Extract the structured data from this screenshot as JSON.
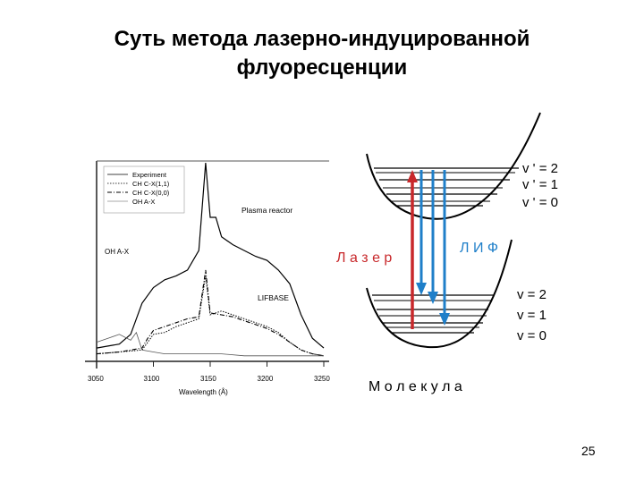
{
  "slide": {
    "title_line1": "Суть метода лазерно-индуцированной",
    "title_line2": "флуоресценции",
    "page_number": "25"
  },
  "chart_data": {
    "type": "line",
    "xlabel": "Wavelength (Å)",
    "ylabel": "",
    "xlim": [
      3050,
      3250
    ],
    "x_ticks": [
      "3050",
      "3100",
      "3150",
      "3200",
      "3250"
    ],
    "legend": [
      "Experiment",
      "CH C-X(1,1)",
      "CH C-X(0,0)",
      "OH A-X"
    ],
    "legend_position": "top-left",
    "annotations": [
      "Plasma reactor",
      "LIFBASE",
      "OH A-X"
    ],
    "series": [
      {
        "name": "Experiment",
        "x": [
          3050,
          3060,
          3070,
          3080,
          3090,
          3100,
          3110,
          3120,
          3130,
          3140,
          3146,
          3150,
          3155,
          3160,
          3170,
          3180,
          3190,
          3200,
          3210,
          3220,
          3230,
          3240,
          3250
        ],
        "y": [
          0.05,
          0.06,
          0.07,
          0.12,
          0.28,
          0.36,
          0.4,
          0.42,
          0.45,
          0.55,
          1.0,
          0.72,
          0.72,
          0.62,
          0.58,
          0.55,
          0.52,
          0.5,
          0.45,
          0.38,
          0.22,
          0.1,
          0.05
        ]
      },
      {
        "name": "CH C-X(1,1)",
        "x": [
          3050,
          3070,
          3090,
          3095,
          3100,
          3110,
          3120,
          3130,
          3140,
          3146,
          3150,
          3160,
          3170,
          3180,
          3190,
          3200,
          3210,
          3220,
          3230,
          3240,
          3250
        ],
        "y": [
          0.02,
          0.03,
          0.04,
          0.08,
          0.12,
          0.13,
          0.16,
          0.18,
          0.2,
          0.42,
          0.22,
          0.24,
          0.22,
          0.2,
          0.18,
          0.16,
          0.13,
          0.08,
          0.04,
          0.02,
          0.01
        ]
      },
      {
        "name": "CH C-X(0,0)",
        "x": [
          3050,
          3070,
          3090,
          3095,
          3100,
          3110,
          3120,
          3130,
          3140,
          3146,
          3150,
          3160,
          3170,
          3180,
          3190,
          3200,
          3210,
          3220,
          3230,
          3240,
          3250
        ],
        "y": [
          0.02,
          0.03,
          0.05,
          0.1,
          0.14,
          0.16,
          0.18,
          0.2,
          0.21,
          0.45,
          0.23,
          0.22,
          0.21,
          0.19,
          0.17,
          0.15,
          0.12,
          0.08,
          0.04,
          0.02,
          0.01
        ]
      },
      {
        "name": "OH A-X",
        "x": [
          3050,
          3060,
          3070,
          3080,
          3085,
          3090,
          3100,
          3110,
          3120,
          3140,
          3160,
          3180,
          3200,
          3220,
          3250
        ],
        "y": [
          0.08,
          0.1,
          0.12,
          0.09,
          0.13,
          0.04,
          0.03,
          0.02,
          0.02,
          0.02,
          0.02,
          0.01,
          0.01,
          0.01,
          0.01
        ]
      }
    ]
  },
  "diagram": {
    "upper_levels": [
      "v ' =  2",
      "v ' =  1",
      "v ' =  0"
    ],
    "lower_levels": [
      "v  =  2",
      "v  =  1",
      "v  =  0"
    ],
    "laser_label": "Л а з е р",
    "lif_label": "Л  И  Ф",
    "molecule_label": "М  о  л  е  к  у  л  а",
    "laser_color": "#c8282b",
    "lif_color": "#1f7fc9"
  }
}
